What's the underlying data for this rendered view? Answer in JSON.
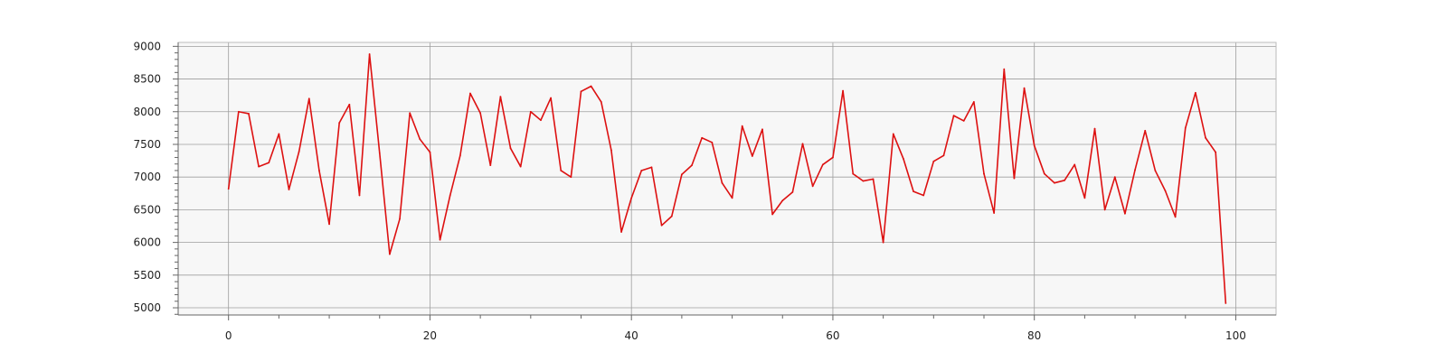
{
  "chart_data": {
    "type": "line",
    "title": "",
    "xlabel": "",
    "ylabel": "",
    "xlim": [
      -5,
      104
    ],
    "ylim": [
      4890,
      9060
    ],
    "x_ticks": [
      0,
      20,
      40,
      60,
      80,
      100
    ],
    "y_ticks": [
      5000,
      5500,
      6000,
      6500,
      7000,
      7500,
      8000,
      8500,
      9000
    ],
    "grid": true,
    "legend": "none",
    "colors": {
      "line": "#dd1111",
      "plot_bg": "#f7f7f7",
      "grid": "#9e9e9e",
      "axis": "#666666"
    },
    "series": [
      {
        "x": [
          0,
          1,
          2,
          3,
          4,
          5,
          6,
          7,
          8,
          9,
          10,
          11,
          12,
          13,
          14,
          15,
          16,
          17,
          18,
          19,
          20,
          21,
          22,
          23,
          24,
          25,
          26,
          27,
          28,
          29,
          30,
          31,
          32,
          33,
          34,
          35,
          36,
          37,
          38,
          39,
          40,
          41,
          42,
          43,
          44,
          45,
          46,
          47,
          48,
          49,
          50,
          51,
          52,
          53,
          54,
          55,
          56,
          57,
          58,
          59,
          60,
          61,
          62,
          63,
          64,
          65,
          66,
          67,
          68,
          69,
          70,
          71,
          72,
          73,
          74,
          75,
          76,
          77,
          78,
          79,
          80,
          81,
          82,
          83,
          84,
          85,
          86,
          87,
          88,
          89,
          90,
          91,
          92,
          93,
          94,
          95,
          96,
          97,
          98,
          99
        ],
        "values": [
          6820,
          8000,
          7970,
          7160,
          7220,
          7660,
          6810,
          7390,
          8200,
          7100,
          6280,
          7830,
          8110,
          6720,
          8880,
          7370,
          5820,
          6360,
          7980,
          7580,
          7380,
          6040,
          6720,
          7330,
          8280,
          7980,
          7180,
          8230,
          7440,
          7160,
          8000,
          7870,
          8210,
          7100,
          7000,
          8310,
          8390,
          8150,
          7410,
          6160,
          6680,
          7100,
          7150,
          6260,
          6400,
          7040,
          7180,
          7600,
          7530,
          6910,
          6680,
          7780,
          7320,
          7730,
          6430,
          6640,
          6770,
          7510,
          6860,
          7190,
          7300,
          8320,
          7050,
          6940,
          6970,
          6000,
          7660,
          7280,
          6780,
          6720,
          7240,
          7330,
          7940,
          7860,
          8150,
          7050,
          6450,
          8650,
          6980,
          8360,
          7480,
          7050,
          6910,
          6950,
          7190,
          6680,
          7740,
          6500,
          7000,
          6440,
          7110,
          7710,
          7100,
          6790,
          6390,
          7750,
          8290,
          7600,
          7380,
          5070
        ]
      }
    ]
  }
}
